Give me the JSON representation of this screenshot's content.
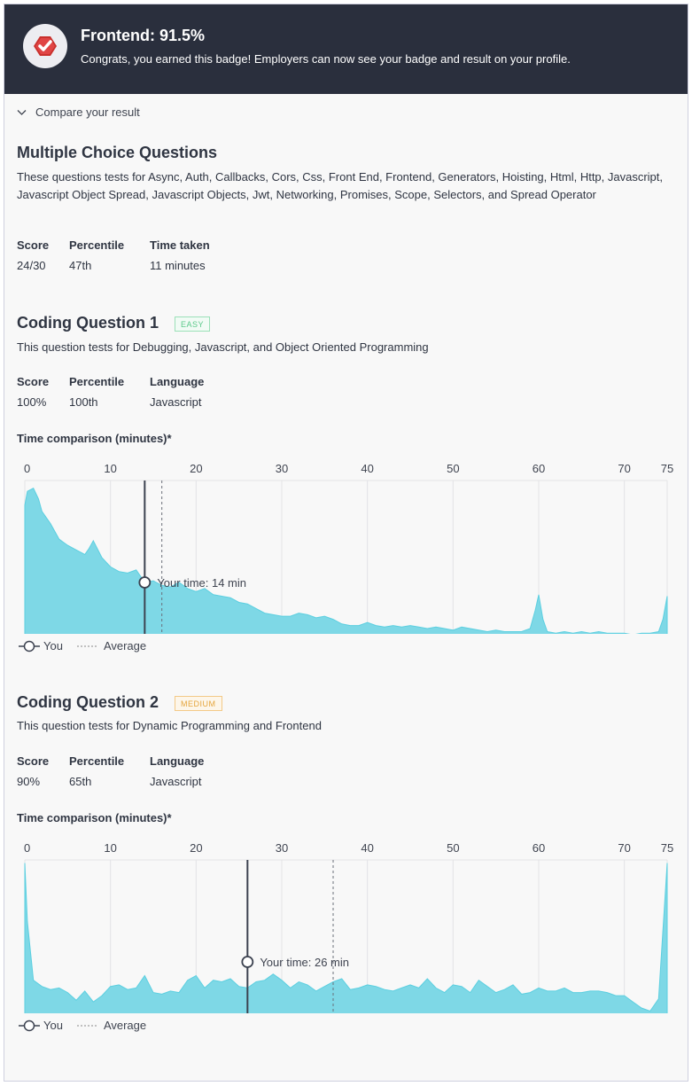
{
  "header": {
    "title": "Frontend: 91.5%",
    "subtitle": "Congrats, you earned this badge! Employers can now see your badge and result on your profile.",
    "badge_icon": "badge-check-icon",
    "badge_color": "#d63a3a"
  },
  "compare": {
    "label": "Compare your result",
    "icon": "chevron-down-icon"
  },
  "mcq": {
    "title": "Multiple Choice Questions",
    "description": "These questions tests for Async, Auth, Callbacks, Cors, Css, Front End, Frontend, Generators, Hoisting, Html, Http, Javascript, Javascript Object Spread, Javascript Objects, Jwt, Networking, Promises, Scope, Selectors, and Spread Operator",
    "stats": [
      {
        "label": "Score",
        "value": "24/30"
      },
      {
        "label": "Percentile",
        "value": "47th"
      },
      {
        "label": "Time taken",
        "value": "11 minutes"
      }
    ]
  },
  "coding": [
    {
      "title": "Coding Question 1",
      "difficulty": "EASY",
      "description": "This question tests for Debugging, Javascript, and Object Oriented Programming",
      "stats": [
        {
          "label": "Score",
          "value": "100%"
        },
        {
          "label": "Percentile",
          "value": "100th"
        },
        {
          "label": "Language",
          "value": "Javascript"
        }
      ],
      "chart_title": "Time comparison (minutes)*",
      "legend": {
        "you": "You",
        "average": "Average"
      }
    },
    {
      "title": "Coding Question 2",
      "difficulty": "MEDIUM",
      "description": "This question tests for Dynamic Programming and Frontend",
      "stats": [
        {
          "label": "Score",
          "value": "90%"
        },
        {
          "label": "Percentile",
          "value": "65th"
        },
        {
          "label": "Language",
          "value": "Javascript"
        }
      ],
      "chart_title": "Time comparison (minutes)*",
      "legend": {
        "you": "You",
        "average": "Average"
      }
    }
  ],
  "colors": {
    "header_bg": "#2a2f3d",
    "area_fill": "#7ed8e6",
    "area_top": "#5ccfe0",
    "marker_line": "#3c4250",
    "grid": "#e3e3e6"
  },
  "chart_data": [
    {
      "type": "area",
      "xlim": [
        0,
        75
      ],
      "x_ticks": [
        "0",
        "10",
        "20",
        "30",
        "40",
        "50",
        "60",
        "70",
        "75"
      ],
      "your_time": 14,
      "your_time_label": "Your time: 14 min",
      "average_time": 16,
      "x": [
        0,
        0.3,
        1,
        1.6,
        2,
        3,
        4,
        5,
        6,
        7,
        7.5,
        8,
        9,
        10,
        11,
        12,
        13,
        14,
        15,
        16,
        17,
        18,
        19,
        20,
        21,
        22,
        23,
        24,
        25,
        26,
        27,
        28,
        29,
        30,
        31,
        32,
        33,
        34,
        35,
        36,
        37,
        38,
        39,
        40,
        41,
        42,
        43,
        44,
        45,
        46,
        47,
        48,
        49,
        50,
        51,
        52,
        53,
        54,
        55,
        56,
        57,
        58,
        59,
        59.6,
        60,
        60.5,
        61,
        62,
        63,
        64,
        65,
        66,
        67,
        68,
        69,
        70,
        71,
        72,
        73,
        74,
        74.5,
        75
      ],
      "y": [
        84,
        93,
        95,
        88,
        80,
        72,
        62,
        58,
        55,
        52,
        56,
        61,
        50,
        44,
        41,
        40,
        42,
        34,
        35,
        32,
        31,
        34,
        30,
        28,
        30,
        26,
        25,
        24,
        21,
        20,
        17,
        14,
        13,
        12,
        12,
        14,
        13,
        11,
        12,
        10,
        7,
        6,
        6,
        8,
        6,
        5,
        6,
        5,
        6,
        5,
        4,
        5,
        4,
        3,
        5,
        4,
        3,
        2,
        3,
        2,
        2,
        2,
        4,
        16,
        26,
        10,
        2,
        1,
        2,
        1,
        2,
        1,
        2,
        1,
        1,
        1,
        0,
        1,
        1,
        2,
        10,
        25
      ]
    },
    {
      "type": "area",
      "xlim": [
        0,
        75
      ],
      "x_ticks": [
        "0",
        "10",
        "20",
        "30",
        "40",
        "50",
        "60",
        "70",
        "75"
      ],
      "your_time": 26,
      "your_time_label": "Your time: 26 min",
      "average_time": 36,
      "x": [
        0,
        0.3,
        1,
        2,
        3,
        4,
        5,
        6,
        7,
        8,
        9,
        10,
        11,
        12,
        13,
        14,
        15,
        16,
        17,
        18,
        19,
        20,
        21,
        22,
        23,
        24,
        25,
        26,
        27,
        28,
        29,
        30,
        31,
        32,
        33,
        34,
        35,
        36,
        37,
        38,
        39,
        40,
        41,
        42,
        43,
        44,
        45,
        46,
        47,
        48,
        49,
        50,
        51,
        52,
        53,
        54,
        55,
        56,
        57,
        58,
        59,
        60,
        61,
        62,
        63,
        64,
        65,
        66,
        67,
        68,
        69,
        70,
        71,
        72,
        73,
        74,
        75
      ],
      "y": [
        98,
        60,
        22,
        18,
        16,
        17,
        14,
        9,
        15,
        8,
        12,
        18,
        19,
        16,
        17,
        25,
        14,
        13,
        15,
        14,
        22,
        25,
        17,
        22,
        21,
        23,
        18,
        17,
        21,
        22,
        26,
        22,
        17,
        21,
        19,
        15,
        18,
        21,
        23,
        16,
        17,
        19,
        18,
        16,
        15,
        17,
        19,
        17,
        23,
        17,
        14,
        19,
        18,
        14,
        22,
        18,
        14,
        16,
        19,
        13,
        14,
        17,
        15,
        15,
        17,
        14,
        14,
        15,
        15,
        14,
        12,
        12,
        8,
        4,
        2,
        10,
        98
      ]
    }
  ]
}
